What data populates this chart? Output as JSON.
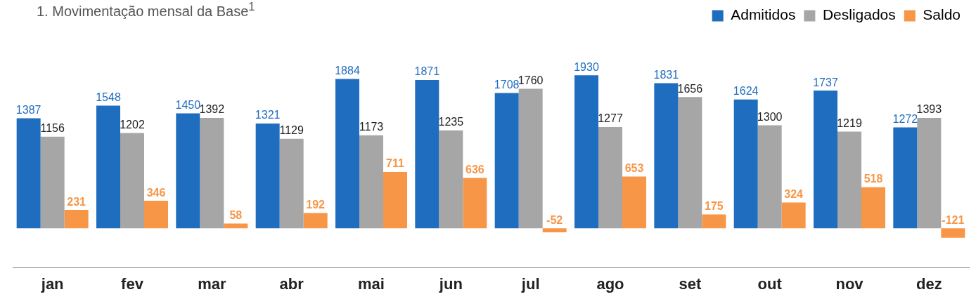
{
  "chart_data": {
    "type": "bar",
    "title": "1. Movimentação mensal da Base$^{1}$",
    "categories": [
      "jan",
      "fev",
      "mar",
      "abr",
      "mai",
      "jun",
      "jul",
      "ago",
      "set",
      "out",
      "nov",
      "dez"
    ],
    "series": [
      {
        "name": "Admitidos",
        "color": "#1f6dbf",
        "values": [
          1387,
          1548,
          1450,
          1321,
          1884,
          1871,
          1708,
          1930,
          1831,
          1624,
          1737,
          1272
        ]
      },
      {
        "name": "Desligados",
        "color": "#a6a6a6",
        "values": [
          1156,
          1202,
          1392,
          1129,
          1173,
          1235,
          1760,
          1277,
          1656,
          1300,
          1219,
          1393
        ]
      },
      {
        "name": "Saldo",
        "color": "#f79646",
        "values": [
          231,
          346,
          58,
          192,
          711,
          636,
          -52,
          653,
          175,
          324,
          518,
          -121
        ]
      }
    ],
    "data_labels": true,
    "legend": "top right",
    "grid": false
  }
}
